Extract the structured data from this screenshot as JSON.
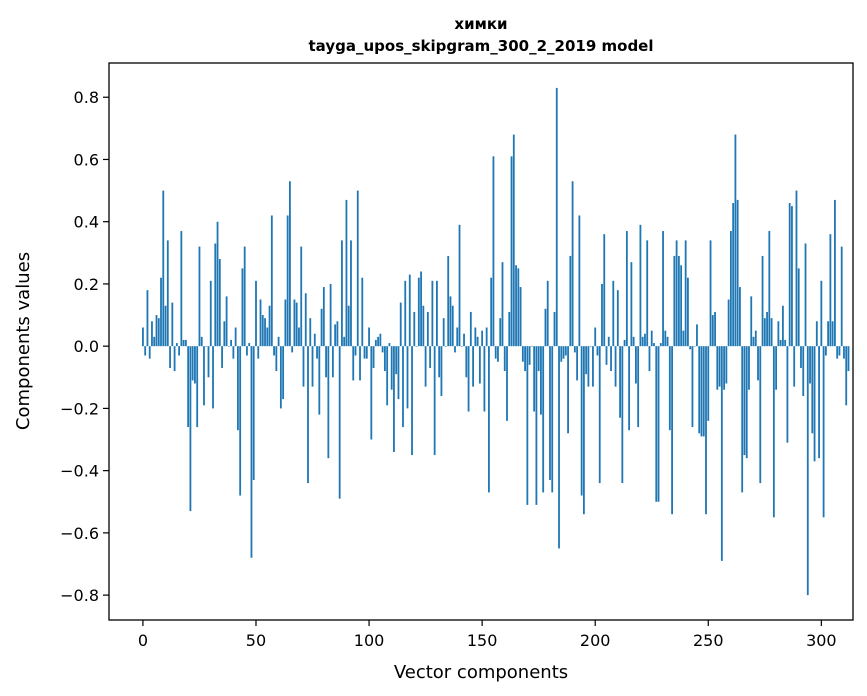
{
  "chart_data": {
    "type": "bar",
    "title": "химки",
    "subtitle": "tayga_upos_skipgram_300_2_2019 model",
    "xlabel": "Vector components",
    "ylabel": "Components values",
    "xlim": [
      -15,
      314
    ],
    "ylim": [
      -0.88,
      0.91
    ],
    "x_ticks": [
      0,
      50,
      100,
      150,
      200,
      250,
      300
    ],
    "x_tick_labels": [
      "0",
      "50",
      "100",
      "150",
      "200",
      "250",
      "300"
    ],
    "y_ticks": [
      -0.8,
      -0.6,
      -0.4,
      -0.2,
      0.0,
      0.2,
      0.4,
      0.6,
      0.8
    ],
    "y_tick_labels": [
      "−0.8",
      "−0.6",
      "−0.4",
      "−0.2",
      "0.0",
      "0.2",
      "0.4",
      "0.6",
      "0.8"
    ],
    "bar_color": "#1f77b4",
    "values": [
      0.06,
      -0.03,
      0.18,
      -0.04,
      0.08,
      0.03,
      0.1,
      0.09,
      0.22,
      0.5,
      0.13,
      0.34,
      -0.07,
      0.14,
      -0.08,
      0.01,
      -0.03,
      0.37,
      0.02,
      0.02,
      -0.26,
      -0.53,
      -0.11,
      -0.12,
      -0.26,
      0.32,
      0.03,
      -0.19,
      0.0,
      -0.1,
      0.21,
      -0.2,
      0.33,
      0.4,
      0.28,
      -0.07,
      0.08,
      0.16,
      0.0,
      0.02,
      -0.04,
      0.06,
      -0.27,
      -0.48,
      0.25,
      0.32,
      -0.03,
      0.01,
      -0.68,
      -0.43,
      0.21,
      -0.04,
      0.15,
      0.1,
      0.09,
      0.06,
      0.13,
      0.42,
      -0.03,
      -0.08,
      0.03,
      -0.2,
      -0.17,
      0.15,
      0.42,
      0.53,
      -0.02,
      0.15,
      0.14,
      0.06,
      0.32,
      -0.13,
      0.17,
      -0.44,
      0.09,
      -0.13,
      0.04,
      -0.04,
      -0.22,
      0.12,
      0.19,
      -0.1,
      -0.36,
      0.2,
      -0.1,
      0.07,
      0.08,
      -0.49,
      0.34,
      0.03,
      0.47,
      0.13,
      0.34,
      -0.11,
      -0.03,
      0.5,
      -0.11,
      0.22,
      -0.04,
      -0.04,
      0.06,
      -0.3,
      -0.07,
      0.02,
      0.03,
      0.04,
      -0.02,
      -0.08,
      -0.19,
      0.01,
      -0.14,
      -0.34,
      -0.09,
      -0.17,
      0.14,
      -0.26,
      0.21,
      -0.2,
      0.23,
      -0.35,
      0.11,
      0.0,
      0.22,
      0.24,
      0.13,
      -0.13,
      0.11,
      -0.07,
      0.21,
      -0.35,
      0.21,
      -0.1,
      -0.16,
      0.09,
      0.0,
      0.29,
      0.16,
      0.13,
      -0.02,
      0.06,
      0.39,
      0.0,
      0.04,
      -0.1,
      -0.21,
      0.11,
      -0.13,
      0.06,
      0.03,
      -0.12,
      0.05,
      -0.21,
      0.06,
      -0.47,
      0.22,
      0.61,
      -0.04,
      -0.05,
      0.09,
      0.27,
      -0.08,
      -0.24,
      0.11,
      0.61,
      0.68,
      0.26,
      0.25,
      0.19,
      -0.05,
      -0.08,
      -0.51,
      -0.06,
      0.0,
      -0.21,
      -0.51,
      -0.08,
      -0.22,
      -0.47,
      0.12,
      0.21,
      -0.43,
      -0.47,
      0.11,
      0.83,
      -0.65,
      -0.05,
      -0.04,
      -0.03,
      -0.28,
      0.29,
      0.53,
      -0.02,
      -0.11,
      0.42,
      -0.48,
      -0.54,
      -0.09,
      -0.13,
      0.0,
      -0.13,
      0.06,
      -0.03,
      -0.44,
      0.2,
      0.36,
      -0.06,
      0.03,
      -0.08,
      0.21,
      -0.13,
      0.18,
      -0.23,
      -0.44,
      0.02,
      0.37,
      -0.27,
      0.27,
      0.03,
      -0.12,
      -0.26,
      0.39,
      0.03,
      0.04,
      0.34,
      -0.08,
      0.05,
      0.01,
      -0.5,
      -0.5,
      0.01,
      0.37,
      0.05,
      0.03,
      -0.27,
      -0.54,
      0.29,
      0.34,
      0.29,
      0.26,
      0.05,
      0.34,
      0.22,
      -0.01,
      -0.26,
      0.0,
      0.07,
      -0.28,
      -0.29,
      -0.29,
      -0.54,
      -0.24,
      0.34,
      0.1,
      0.11,
      -0.14,
      -0.13,
      -0.69,
      -0.14,
      -0.12,
      0.15,
      0.37,
      0.46,
      0.68,
      0.47,
      0.19,
      -0.47,
      -0.35,
      -0.36,
      -0.14,
      0.16,
      0.03,
      0.05,
      -0.11,
      -0.44,
      0.29,
      0.09,
      0.11,
      0.37,
      0.09,
      -0.55,
      -0.14,
      0.08,
      0.02,
      0.13,
      0.02,
      -0.31,
      0.46,
      0.45,
      -0.13,
      0.5,
      0.25,
      -0.07,
      -0.16,
      0.33,
      -0.8,
      -0.12,
      -0.28,
      -0.37,
      0.08,
      -0.36,
      0.21,
      -0.55,
      -0.03,
      0.08,
      0.36,
      0.08,
      0.47,
      -0.04,
      -0.03,
      0.32,
      -0.04,
      -0.19,
      -0.08
    ]
  }
}
